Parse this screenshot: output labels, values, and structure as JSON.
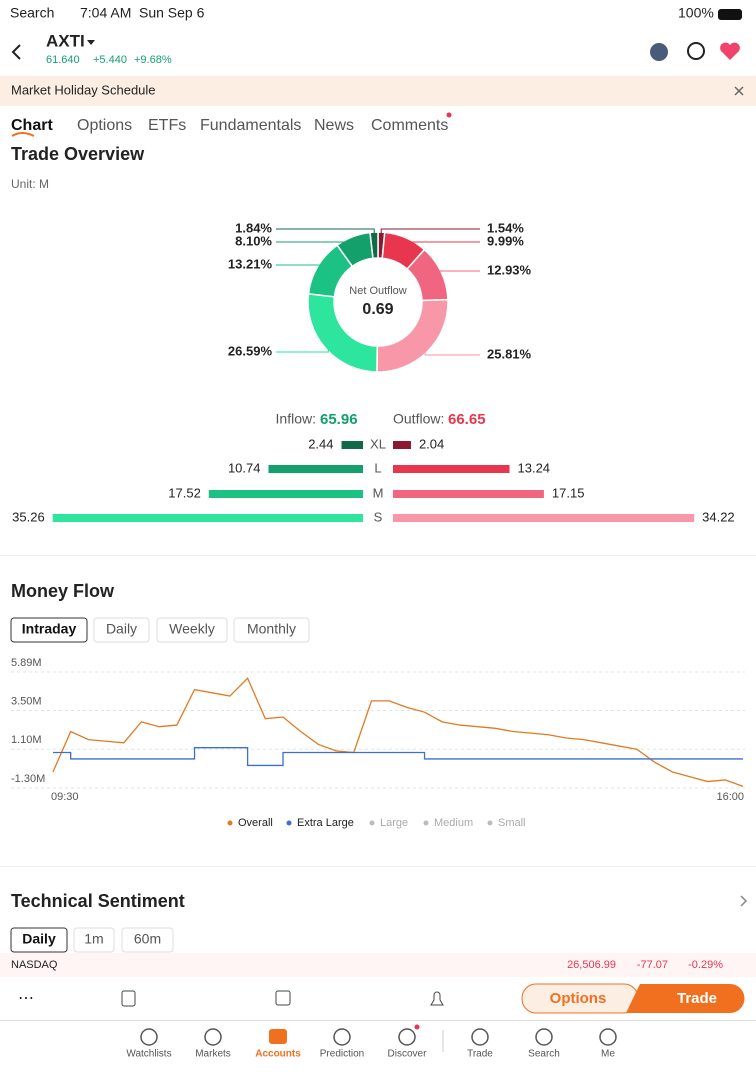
{
  "status_bar": {
    "back": "Search",
    "time": "7:04 AM",
    "date": "Sun Sep 6",
    "battery": "100%"
  },
  "header": {
    "symbol": "AXTI",
    "price": "61.640",
    "change": "+5.440",
    "change_percent": "+9.68%"
  },
  "banner": {
    "text": "Market Holiday Schedule"
  },
  "tabs": [
    "Chart",
    "Options",
    "ETFs",
    "Fundamentals",
    "News",
    "Comments"
  ],
  "trade_overview": {
    "title": "Trade Overview",
    "unit": "Unit: M",
    "center_label": "Net Outflow",
    "center_value": "0.69",
    "inflow_slices": {
      "values": [
        1.84,
        8.1,
        13.21,
        26.59
      ],
      "value_labels": [
        "1.84%",
        "8.10%",
        "13.21%",
        "26.59%"
      ],
      "colors": [
        "#0f6b47",
        "#13a06b",
        "#1cc283",
        "#2ee59d"
      ]
    },
    "outflow_slices": {
      "values": [
        1.54,
        9.99,
        12.93,
        25.81
      ],
      "value_labels": [
        "1.54%",
        "9.99%",
        "12.93%",
        "25.81%"
      ],
      "colors": [
        "#8b1a30",
        "#e8364f",
        "#f06680",
        "#f797a8"
      ]
    },
    "inflow_label": "Inflow:",
    "inflow_total": "65.96",
    "outflow_label": "Outflow:",
    "outflow_total": "66.65",
    "sizes": [
      "XL",
      "L",
      "M",
      "S"
    ],
    "inflow": {
      "values": [
        2.44,
        10.74,
        17.52,
        35.26
      ],
      "colors": [
        "#0f6b47",
        "#13a06b",
        "#1cc283",
        "#2ee59d"
      ]
    },
    "outflow": {
      "values": [
        2.04,
        13.24,
        17.15,
        34.22
      ],
      "colors": [
        "#8b1a30",
        "#e8364f",
        "#f06680",
        "#f797a8"
      ]
    }
  },
  "money_flow": {
    "title": "Money Flow",
    "periods": [
      "Intraday",
      "Daily",
      "Weekly",
      "Monthly"
    ],
    "x_labels": [
      "09:30",
      "16:00"
    ],
    "chart_data": {
      "type": "line",
      "ylim": [
        -1.3,
        5.89
      ],
      "yticks": [
        {
          "value": 5.89,
          "label": "5.89M"
        },
        {
          "value": 3.5,
          "label": "3.50M"
        },
        {
          "value": 1.1,
          "label": "1.10M"
        },
        {
          "value": -1.3,
          "label": "-1.30M"
        }
      ],
      "series": [
        {
          "name": "Overall",
          "color": "#e07b21",
          "values": [
            -0.3,
            2.2,
            1.7,
            1.6,
            1.5,
            2.8,
            2.5,
            2.6,
            4.8,
            4.6,
            4.4,
            5.5,
            3.0,
            3.1,
            2.2,
            1.4,
            1.0,
            0.9,
            4.1,
            4.1,
            3.7,
            3.4,
            2.8,
            2.6,
            2.5,
            2.4,
            2.2,
            2.1,
            2.0,
            1.8,
            1.7,
            1.5,
            1.3,
            1.1,
            0.3,
            -0.3,
            -0.6,
            -0.9,
            -0.8,
            -1.2
          ]
        },
        {
          "name": "Extra Large",
          "color": "#3d6fd1",
          "values": [
            0.9,
            0.5,
            0.5,
            0.5,
            0.5,
            0.5,
            0.5,
            0.5,
            1.2,
            1.2,
            1.2,
            0.1,
            0.1,
            0.9,
            0.9,
            0.9,
            0.9,
            0.9,
            0.9,
            0.9,
            0.9,
            0.5,
            0.5,
            0.5,
            0.5,
            0.5,
            0.5,
            0.5,
            0.5,
            0.5,
            0.5,
            0.5,
            0.5,
            0.5,
            0.5,
            0.5,
            0.5,
            0.5,
            0.5,
            0.5
          ]
        },
        {
          "name": "Large",
          "color": "#bbbbbb",
          "values": []
        },
        {
          "name": "Medium",
          "color": "#bbbbbb",
          "values": []
        },
        {
          "name": "Small",
          "color": "#bbbbbb",
          "values": []
        }
      ]
    }
  },
  "technical_sentiment": {
    "title": "Technical Sentiment",
    "periods": [
      "Daily",
      "1m",
      "60m"
    ]
  },
  "ticker": {
    "name": "NASDAQ",
    "value": "26,506.99",
    "change": "-77.07",
    "change_percent": "-0.29%"
  },
  "toolbar": {
    "options": "Options",
    "trade": "Trade"
  },
  "nav": [
    "Watchlists",
    "Markets",
    "Accounts",
    "Prediction",
    "Discover",
    "Trade",
    "Search",
    "Me"
  ]
}
